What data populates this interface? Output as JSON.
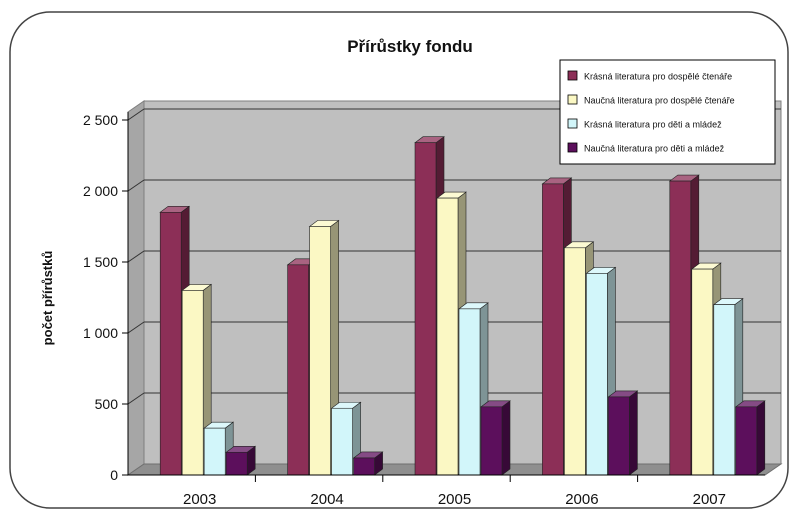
{
  "chart_data": {
    "type": "bar",
    "title": "Přírůstky fondu",
    "ylabel": "počet přírůstků",
    "xlabel": "",
    "categories": [
      "2003",
      "2004",
      "2005",
      "2006",
      "2007"
    ],
    "ylim": [
      0,
      2500
    ],
    "yticks": [
      0,
      500,
      1000,
      1500,
      2000,
      2500
    ],
    "ytick_labels": [
      "0",
      "500",
      "1 000",
      "1 500",
      "2 000",
      "2 500"
    ],
    "grid": true,
    "legend_position": "top-right",
    "series": [
      {
        "name": "Krásná literatura pro dospělé čtenáře",
        "values": [
          1850,
          1480,
          2340,
          2050,
          2070
        ],
        "color": "#8c2f57"
      },
      {
        "name": "Naučná literatura pro dospělé čtenáře",
        "values": [
          1300,
          1750,
          1950,
          1600,
          1450
        ],
        "color": "#fbf8c4"
      },
      {
        "name": "Krásná literatura pro děti a mládež",
        "values": [
          330,
          470,
          1170,
          1420,
          1200
        ],
        "color": "#d2f6fa"
      },
      {
        "name": "Naučná literatura pro děti a mládež",
        "values": [
          160,
          120,
          480,
          550,
          480
        ],
        "color": "#5c0f5c"
      }
    ]
  }
}
